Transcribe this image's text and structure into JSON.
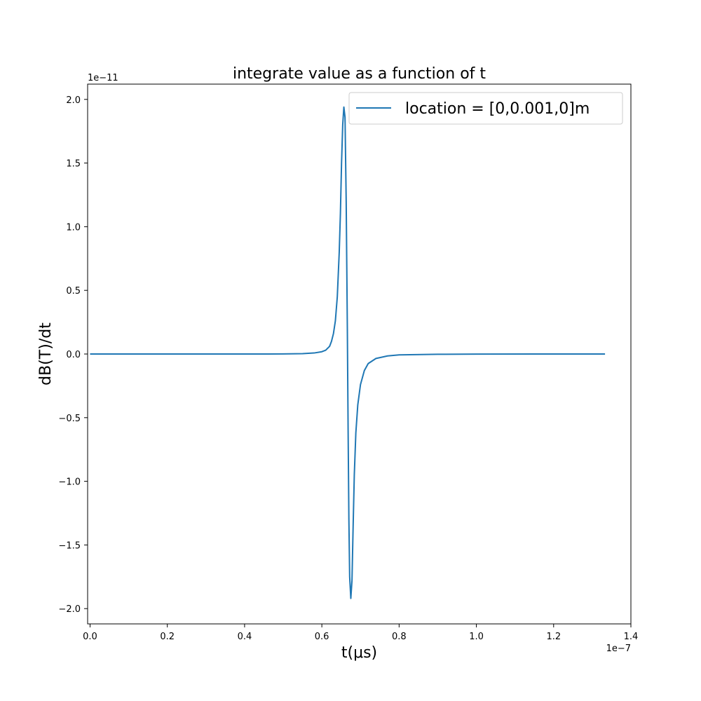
{
  "chart_data": {
    "type": "line",
    "title": "integrate value as a function of t",
    "xlabel": "t(μs)",
    "ylabel": "dB(T)/dt",
    "x_offset_text": "1e−7",
    "y_offset_text": "1e−11",
    "x_scale": 1e-07,
    "y_scale": 1e-11,
    "xlim": [
      -0.0063,
      1.4
    ],
    "ylim": [
      -2.12,
      2.12
    ],
    "xticks": [
      {
        "value": 0.0,
        "label": "0.0"
      },
      {
        "value": 0.2,
        "label": "0.2"
      },
      {
        "value": 0.4,
        "label": "0.4"
      },
      {
        "value": 0.6,
        "label": "0.6"
      },
      {
        "value": 0.8,
        "label": "0.8"
      },
      {
        "value": 1.0,
        "label": "1.0"
      },
      {
        "value": 1.2,
        "label": "1.2"
      },
      {
        "value": 1.4,
        "label": "1.4"
      }
    ],
    "yticks": [
      {
        "value": 2.0,
        "label": "2.0"
      },
      {
        "value": 1.5,
        "label": "1.5"
      },
      {
        "value": 1.0,
        "label": "1.0"
      },
      {
        "value": 0.5,
        "label": "0.5"
      },
      {
        "value": 0.0,
        "label": "0.0"
      },
      {
        "value": -0.5,
        "label": "−0.5"
      },
      {
        "value": -1.0,
        "label": "−1.0"
      },
      {
        "value": -1.5,
        "label": "−1.5"
      },
      {
        "value": -2.0,
        "label": "−2.0"
      }
    ],
    "legend": {
      "placement": "top-right"
    },
    "grid": false,
    "series": [
      {
        "name": "location = [0,0.001,0]m",
        "color": "#1f77b4",
        "points": [
          [
            0.0,
            0.0
          ],
          [
            0.2,
            0.0
          ],
          [
            0.4,
            0.0
          ],
          [
            0.5,
            0.0005
          ],
          [
            0.55,
            0.003
          ],
          [
            0.58,
            0.008
          ],
          [
            0.6,
            0.018
          ],
          [
            0.61,
            0.03
          ],
          [
            0.62,
            0.06
          ],
          [
            0.625,
            0.1
          ],
          [
            0.63,
            0.16
          ],
          [
            0.635,
            0.26
          ],
          [
            0.64,
            0.45
          ],
          [
            0.645,
            0.8
          ],
          [
            0.648,
            1.1
          ],
          [
            0.651,
            1.5
          ],
          [
            0.654,
            1.8
          ],
          [
            0.657,
            1.94
          ],
          [
            0.66,
            1.86
          ],
          [
            0.663,
            1.2
          ],
          [
            0.666,
            0.2
          ],
          [
            0.668,
            -0.6
          ],
          [
            0.67,
            -1.3
          ],
          [
            0.672,
            -1.75
          ],
          [
            0.675,
            -1.92
          ],
          [
            0.678,
            -1.78
          ],
          [
            0.681,
            -1.35
          ],
          [
            0.684,
            -0.95
          ],
          [
            0.688,
            -0.62
          ],
          [
            0.693,
            -0.4
          ],
          [
            0.7,
            -0.24
          ],
          [
            0.71,
            -0.13
          ],
          [
            0.72,
            -0.075
          ],
          [
            0.74,
            -0.035
          ],
          [
            0.77,
            -0.015
          ],
          [
            0.8,
            -0.007
          ],
          [
            0.9,
            -0.002
          ],
          [
            1.0,
            -0.001
          ],
          [
            1.2,
            0.0
          ],
          [
            1.333,
            0.0
          ]
        ]
      }
    ]
  }
}
